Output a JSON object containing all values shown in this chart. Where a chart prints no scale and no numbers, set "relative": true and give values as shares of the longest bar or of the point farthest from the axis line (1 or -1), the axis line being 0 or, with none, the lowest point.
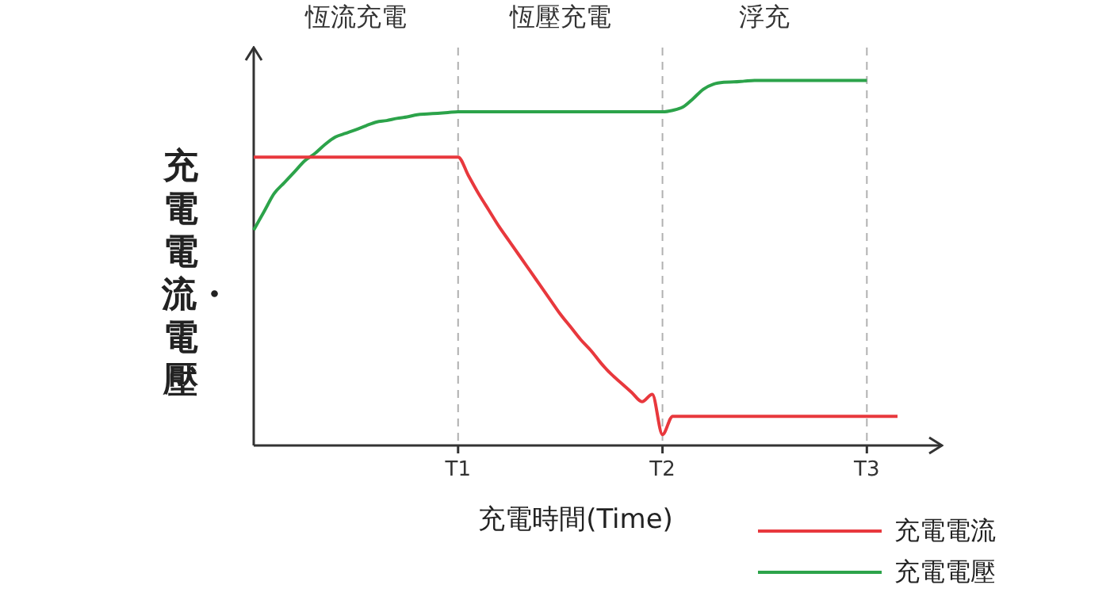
{
  "chart_data": {
    "type": "line",
    "relative": true,
    "xlabel": "充電時間(Time)",
    "ylabel": "充電電流・電壓",
    "categories": [
      null,
      null,
      null,
      null,
      null,
      null,
      null,
      null,
      null,
      null,
      null,
      null,
      null,
      null,
      null,
      null,
      null,
      null,
      null,
      null,
      "T1",
      null,
      null,
      null,
      null,
      null,
      null,
      null,
      null,
      null,
      null,
      null,
      null,
      null,
      null,
      null,
      null,
      null,
      null,
      null,
      "T2",
      null,
      null,
      null,
      null,
      null,
      null,
      null,
      null,
      null,
      null,
      null,
      null,
      null,
      null,
      null,
      null,
      null,
      null,
      null,
      "T3",
      null,
      null,
      null
    ],
    "series": [
      {
        "name": "充電電流",
        "color": "#e8383d",
        "values": [
          0.79,
          0.79,
          0.79,
          0.79,
          0.79,
          0.79,
          0.79,
          0.79,
          0.79,
          0.79,
          0.79,
          0.79,
          0.79,
          0.79,
          0.79,
          0.79,
          0.79,
          0.79,
          0.79,
          0.79,
          0.79,
          0.74,
          0.69,
          0.645,
          0.6,
          0.56,
          0.52,
          0.48,
          0.44,
          0.4,
          0.36,
          0.325,
          0.29,
          0.26,
          0.225,
          0.195,
          0.17,
          0.145,
          0.12,
          0.14,
          0.03,
          0.08,
          0.08,
          0.08,
          0.08,
          0.08,
          0.08,
          0.08,
          0.08,
          0.08,
          0.08,
          0.08,
          0.08,
          0.08,
          0.08,
          0.08,
          0.08,
          0.08,
          0.08,
          0.08,
          0.08,
          0.08,
          0.08,
          0.08
        ]
      },
      {
        "name": "充電電壓",
        "color": "#2ca34a",
        "values": [
          0.59,
          0.64,
          0.69,
          0.72,
          0.75,
          0.78,
          0.8,
          0.825,
          0.845,
          0.855,
          0.865,
          0.876,
          0.886,
          0.89,
          0.896,
          0.9,
          0.906,
          0.908,
          0.91,
          0.912,
          0.914,
          0.914,
          0.914,
          0.914,
          0.914,
          0.914,
          0.914,
          0.914,
          0.914,
          0.914,
          0.914,
          0.914,
          0.914,
          0.914,
          0.914,
          0.914,
          0.914,
          0.914,
          0.914,
          0.914,
          0.914,
          0.918,
          0.927,
          0.95,
          0.976,
          0.99,
          0.995,
          0.996,
          0.998,
          1,
          1,
          1,
          1,
          1,
          1,
          1,
          1,
          1,
          1,
          1,
          1,
          null,
          null,
          null
        ]
      }
    ],
    "ref_lines": [
      {
        "axis": "x",
        "value": "T1",
        "label": null,
        "color": "#b0b0b0",
        "line_style": "dashed"
      },
      {
        "axis": "x",
        "value": "T2",
        "label": null,
        "color": "#b0b0b0",
        "line_style": "dashed"
      },
      {
        "axis": "x",
        "value": "T3",
        "label": null,
        "color": "#b0b0b0",
        "line_style": "dashed"
      }
    ],
    "annotations": [
      "恆流充電",
      "恆壓充電",
      "浮充"
    ],
    "grid": false,
    "legend": "bottom right",
    "marker": "none",
    "line_style": "solid"
  }
}
